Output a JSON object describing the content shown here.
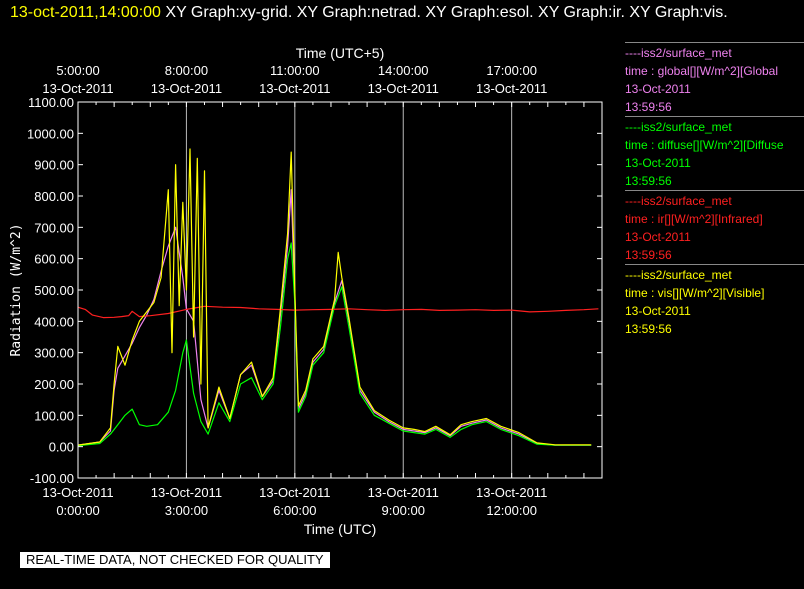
{
  "header": {
    "timestamp": "13-oct-2011,14:00:00",
    "title_rest": "XY Graph:xy-grid.  XY Graph:netrad.  XY Graph:esol.  XY Graph:ir.  XY Graph:vis."
  },
  "legend": [
    {
      "source": "----iss2/surface_met",
      "desc": "time : global[][W/m^2][Global",
      "date": "13-Oct-2011",
      "time": "13:59:56",
      "color": "#ee82ee"
    },
    {
      "source": "----iss2/surface_met",
      "desc": "time : diffuse[][W/m^2][Diffuse",
      "date": "13-Oct-2011",
      "time": "13:59:56",
      "color": "#00ff00"
    },
    {
      "source": "----iss2/surface_met",
      "desc": "time : ir[][W/m^2][Infrared]",
      "date": "13-Oct-2011",
      "time": "13:59:56",
      "color": "#ff2020"
    },
    {
      "source": "----iss2/surface_met",
      "desc": "time : vis[][W/m^2][Visible]",
      "date": "13-Oct-2011",
      "time": "13:59:56",
      "color": "#ffff00"
    }
  ],
  "notice": "REAL-TIME DATA, NOT CHECKED FOR QUALITY",
  "chart_data": {
    "type": "line",
    "xlabel": "Time (UTC)",
    "x2label": "Time (UTC+5)",
    "ylabel": "Radiation (W/m^2)",
    "ylim": [
      -100,
      1100
    ],
    "xlim": [
      0,
      14.5
    ],
    "yticks": [
      -100,
      0,
      100,
      200,
      300,
      400,
      500,
      600,
      700,
      800,
      900,
      1000,
      1100
    ],
    "ytick_labels": [
      "-100.00",
      "0.00",
      "100.00",
      "200.00",
      "300.00",
      "400.00",
      "500.00",
      "600.00",
      "700.00",
      "800.00",
      "900.00",
      "1000.00",
      "1100.00"
    ],
    "xticks_bottom": [
      {
        "x": 0,
        "date": "13-Oct-2011",
        "time": "0:00:00"
      },
      {
        "x": 3,
        "date": "13-Oct-2011",
        "time": "3:00:00"
      },
      {
        "x": 6,
        "date": "13-Oct-2011",
        "time": "6:00:00"
      },
      {
        "x": 9,
        "date": "13-Oct-2011",
        "time": "9:00:00"
      },
      {
        "x": 12,
        "date": "13-Oct-2011",
        "time": "12:00:00"
      }
    ],
    "xticks_top": [
      {
        "x": 0,
        "time": "5:00:00",
        "date": "13-Oct-2011"
      },
      {
        "x": 3,
        "time": "8:00:00",
        "date": "13-Oct-2011"
      },
      {
        "x": 6,
        "time": "11:00:00",
        "date": "13-Oct-2011"
      },
      {
        "x": 9,
        "time": "14:00:00",
        "date": "13-Oct-2011"
      },
      {
        "x": 12,
        "time": "17:00:00",
        "date": "13-Oct-2011"
      }
    ],
    "grid": true,
    "series": [
      {
        "name": "global",
        "color": "#ee82ee",
        "x": [
          0,
          0.6,
          0.9,
          1.0,
          1.1,
          1.3,
          1.5,
          1.7,
          1.9,
          2.1,
          2.3,
          2.5,
          2.7,
          2.9,
          3.0,
          3.2,
          3.4,
          3.6,
          3.9,
          4.2,
          4.5,
          4.8,
          5.1,
          5.4,
          5.6,
          5.8,
          5.9,
          6.0,
          6.1,
          6.3,
          6.5,
          6.8,
          7.1,
          7.3,
          7.5,
          7.8,
          8.2,
          8.6,
          9.0,
          9.3,
          9.6,
          9.9,
          10.3,
          10.6,
          10.9,
          11.3,
          11.7,
          12.2,
          12.7,
          13.2,
          13.7,
          14.2
        ],
        "y": [
          5,
          15,
          50,
          180,
          250,
          290,
          330,
          380,
          420,
          470,
          560,
          640,
          700,
          540,
          440,
          400,
          150,
          60,
          180,
          90,
          230,
          260,
          160,
          210,
          420,
          640,
          820,
          480,
          120,
          170,
          270,
          310,
          460,
          530,
          400,
          180,
          110,
          80,
          55,
          50,
          45,
          60,
          35,
          65,
          75,
          85,
          60,
          40,
          10,
          5,
          5,
          5
        ]
      },
      {
        "name": "diffuse",
        "color": "#00ff00",
        "x": [
          0,
          0.6,
          0.9,
          1.1,
          1.3,
          1.5,
          1.7,
          1.9,
          2.2,
          2.5,
          2.7,
          2.9,
          3.0,
          3.2,
          3.4,
          3.6,
          3.9,
          4.2,
          4.5,
          4.8,
          5.1,
          5.4,
          5.6,
          5.8,
          5.9,
          6.0,
          6.1,
          6.3,
          6.5,
          6.8,
          7.1,
          7.3,
          7.5,
          7.8,
          8.2,
          8.6,
          9.0,
          9.3,
          9.6,
          9.9,
          10.3,
          10.6,
          10.9,
          11.3,
          11.7,
          12.2,
          12.7,
          13.2,
          13.7,
          14.2
        ],
        "y": [
          3,
          10,
          40,
          70,
          100,
          120,
          70,
          65,
          70,
          110,
          180,
          300,
          340,
          170,
          80,
          40,
          140,
          80,
          200,
          220,
          150,
          200,
          380,
          600,
          650,
          460,
          110,
          160,
          260,
          300,
          450,
          510,
          380,
          170,
          100,
          75,
          50,
          45,
          40,
          55,
          30,
          55,
          70,
          80,
          55,
          35,
          8,
          5,
          5,
          5
        ]
      },
      {
        "name": "ir",
        "color": "#ff2020",
        "x": [
          0,
          0.2,
          0.4,
          0.7,
          1.0,
          1.2,
          1.4,
          1.5,
          1.7,
          2.0,
          2.5,
          3.0,
          3.5,
          4.0,
          4.5,
          5.0,
          5.5,
          6.0,
          6.5,
          7.0,
          7.5,
          8.0,
          8.5,
          9.0,
          9.5,
          10.0,
          10.5,
          11.0,
          11.5,
          12.0,
          12.5,
          13.0,
          13.5,
          14.0,
          14.4
        ],
        "y": [
          445,
          438,
          420,
          412,
          413,
          415,
          418,
          432,
          415,
          418,
          425,
          438,
          448,
          445,
          444,
          440,
          438,
          436,
          437,
          438,
          440,
          437,
          435,
          437,
          438,
          435,
          436,
          437,
          435,
          436,
          430,
          432,
          435,
          437,
          440
        ]
      },
      {
        "name": "vis",
        "color": "#ffff00",
        "x": [
          0,
          0.6,
          0.9,
          1.0,
          1.1,
          1.3,
          1.5,
          1.7,
          1.9,
          2.1,
          2.3,
          2.5,
          2.6,
          2.7,
          2.8,
          2.9,
          3.0,
          3.1,
          3.2,
          3.3,
          3.4,
          3.5,
          3.6,
          3.9,
          4.2,
          4.5,
          4.8,
          5.1,
          5.4,
          5.6,
          5.8,
          5.9,
          6.0,
          6.1,
          6.3,
          6.5,
          6.8,
          7.1,
          7.2,
          7.3,
          7.5,
          7.8,
          8.2,
          8.6,
          9.0,
          9.3,
          9.6,
          9.9,
          10.3,
          10.6,
          10.9,
          11.3,
          11.7,
          12.2,
          12.7,
          13.2,
          13.7,
          14.2
        ],
        "y": [
          5,
          15,
          60,
          200,
          320,
          260,
          340,
          400,
          430,
          460,
          540,
          820,
          300,
          900,
          450,
          780,
          500,
          950,
          350,
          920,
          200,
          880,
          60,
          190,
          90,
          230,
          270,
          160,
          220,
          440,
          680,
          940,
          500,
          130,
          180,
          280,
          320,
          470,
          620,
          540,
          410,
          190,
          115,
          85,
          60,
          55,
          48,
          65,
          38,
          70,
          80,
          90,
          65,
          45,
          12,
          6,
          6,
          6
        ]
      }
    ]
  }
}
